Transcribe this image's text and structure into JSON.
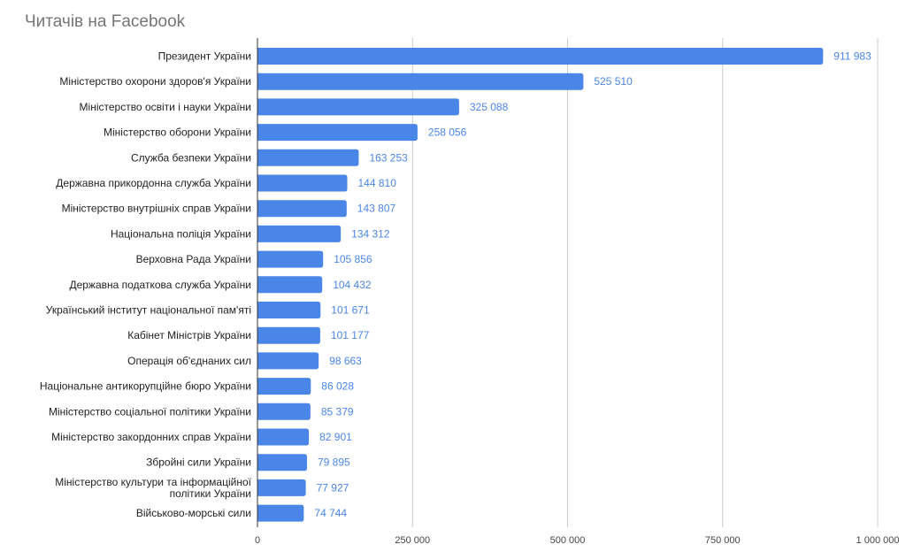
{
  "title": "Читачів на Facebook",
  "chart_data": {
    "type": "bar",
    "orientation": "horizontal",
    "title": "Читачів на Facebook",
    "xlabel": "",
    "ylabel": "",
    "xlim": [
      0,
      1000000
    ],
    "grid": true,
    "color": "#4a86e8",
    "categories": [
      "Президент України",
      "Міністерство охорони здоров'я України",
      "Міністерство освіти і науки України",
      "Міністерство оборони України",
      "Служба безпеки України",
      "Державна прикордонна служба України",
      "Міністерство внутрішніх справ України",
      "Національна поліція України",
      "Верховна Рада України",
      "Державна податкова служба України",
      "Український інститут національної пам'яті",
      "Кабінет Міністрів України",
      "Операція об'єднаних сил",
      "Національне антикорупційне бюро України",
      "Міністерство соціальної політики України",
      "Міністерство закордонних справ України",
      "Збройні сили України",
      "Міністерство культури та інформаційної політики України",
      "Військово-морські сили"
    ],
    "category_lines": [
      [
        "Президент України"
      ],
      [
        "Міністерство охорони здоров'я України"
      ],
      [
        "Міністерство освіти і науки України"
      ],
      [
        "Міністерство оборони України"
      ],
      [
        "Служба безпеки України"
      ],
      [
        "Державна прикордонна служба України"
      ],
      [
        "Міністерство внутрішніх справ України"
      ],
      [
        "Національна поліція України"
      ],
      [
        "Верховна Рада України"
      ],
      [
        "Державна податкова служба України"
      ],
      [
        "Український інститут національної пам'яті"
      ],
      [
        "Кабінет Міністрів України"
      ],
      [
        "Операція об'єднаних сил"
      ],
      [
        "Національне антикорупційне бюро України"
      ],
      [
        "Міністерство соціальної політики України"
      ],
      [
        "Міністерство закордонних справ України"
      ],
      [
        "Збройні сили України"
      ],
      [
        "Міністерство культури та інформаційної",
        "політики України"
      ],
      [
        "Військово-морські сили"
      ]
    ],
    "values": [
      911983,
      525510,
      325088,
      258056,
      163253,
      144810,
      143807,
      134312,
      105856,
      104432,
      101671,
      101177,
      98663,
      86028,
      85379,
      82901,
      79895,
      77927,
      74744
    ],
    "value_labels": [
      "911 983",
      "525 510",
      "325 088",
      "258 056",
      "163 253",
      "144 810",
      "143 807",
      "134 312",
      "105 856",
      "104 432",
      "101 671",
      "101 177",
      "98 663",
      "86 028",
      "85 379",
      "82 901",
      "79 895",
      "77 927",
      "74 744"
    ],
    "ticks": [
      0,
      250000,
      500000,
      750000,
      1000000
    ],
    "tick_labels": [
      "0",
      "250 000",
      "500 000",
      "750 000",
      "1 000 000"
    ]
  }
}
